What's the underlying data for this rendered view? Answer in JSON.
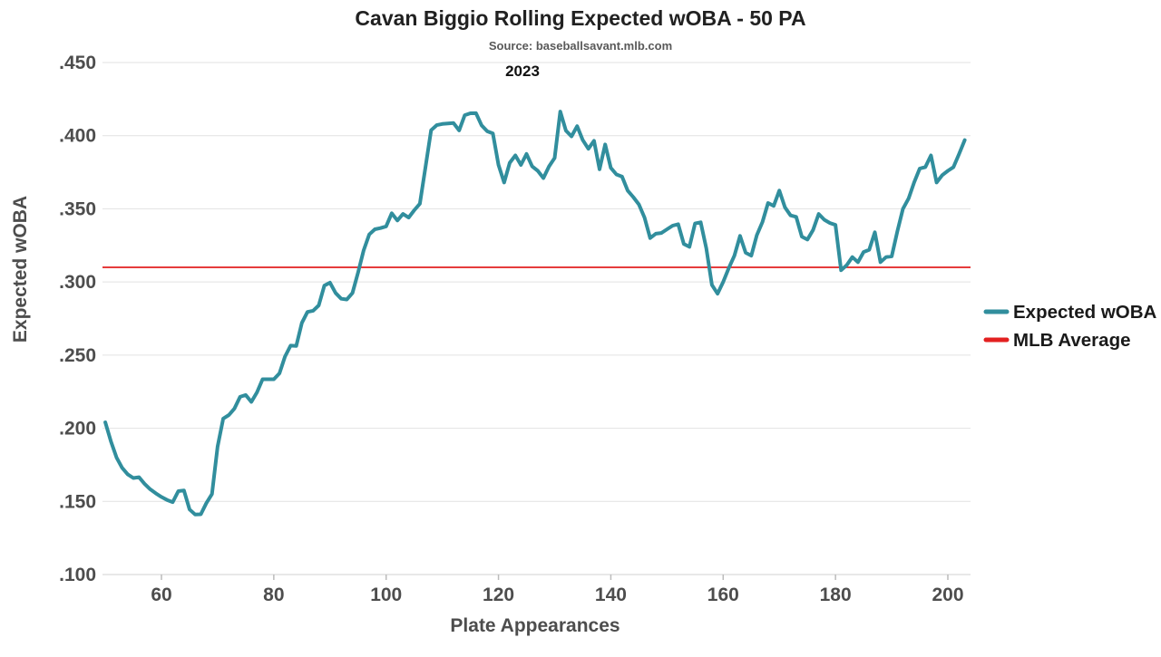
{
  "header": {
    "title": "Cavan Biggio Rolling Expected wOBA - 50 PA",
    "subtitle": "Source: baseballsavant.mlb.com",
    "facet_label": "2023"
  },
  "axes": {
    "x_label": "Plate Appearances",
    "y_label": "Expected wOBA"
  },
  "legend": {
    "items": [
      {
        "label": "Expected wOBA",
        "color": "#318e9d"
      },
      {
        "label": "MLB Average",
        "color": "#e32020"
      }
    ]
  },
  "colors": {
    "expected_woba_line": "#318e9d",
    "mlb_average_line": "#e32020",
    "gridline": "#e2e2e2",
    "baseline": "#d0d0d0",
    "tick_mark": "#bbbbbb",
    "axis_text": "#4d4d4d",
    "title_text": "#212121"
  },
  "chart_data": {
    "type": "line",
    "title": "Cavan Biggio Rolling Expected wOBA - 50 PA",
    "subtitle": "Source: baseballsavant.mlb.com",
    "facet_label": "2023",
    "xlabel": "Plate Appearances",
    "ylabel": "Expected wOBA",
    "xlim": [
      49.5,
      204.5
    ],
    "ylim": [
      0.1,
      0.45
    ],
    "grid": "horizontal-only",
    "legend_position": "right",
    "x_ticks": [
      60,
      80,
      100,
      120,
      140,
      160,
      180,
      200
    ],
    "y_ticks": [
      {
        "value": 0.45,
        "label": ".450"
      },
      {
        "value": 0.4,
        "label": ".400"
      },
      {
        "value": 0.35,
        "label": ".350"
      },
      {
        "value": 0.3,
        "label": ".300"
      },
      {
        "value": 0.25,
        "label": ".250"
      },
      {
        "value": 0.2,
        "label": ".200"
      },
      {
        "value": 0.15,
        "label": ".150"
      },
      {
        "value": 0.1,
        "label": ".100"
      }
    ],
    "mlb_average": 0.31,
    "series": [
      {
        "name": "Expected wOBA",
        "x_start": 50,
        "x_step": 1,
        "values": [
          0.204,
          0.191,
          0.18,
          0.173,
          0.1685,
          0.166,
          0.1665,
          0.162,
          0.1583,
          0.1555,
          0.153,
          0.151,
          0.1495,
          0.157,
          0.1575,
          0.1445,
          0.141,
          0.1412,
          0.1488,
          0.155,
          0.1875,
          0.2066,
          0.209,
          0.2135,
          0.2215,
          0.2227,
          0.218,
          0.2245,
          0.2335,
          0.2335,
          0.2335,
          0.2375,
          0.249,
          0.2565,
          0.2562,
          0.272,
          0.2795,
          0.2803,
          0.284,
          0.2975,
          0.2995,
          0.2925,
          0.2885,
          0.288,
          0.2925,
          0.3065,
          0.3215,
          0.3325,
          0.336,
          0.3368,
          0.338,
          0.347,
          0.342,
          0.3465,
          0.344,
          0.349,
          0.3535,
          0.3785,
          0.4037,
          0.4072,
          0.408,
          0.4083,
          0.4086,
          0.4036,
          0.414,
          0.4153,
          0.4154,
          0.407,
          0.403,
          0.4015,
          0.38,
          0.368,
          0.3815,
          0.3865,
          0.38,
          0.3875,
          0.379,
          0.376,
          0.371,
          0.379,
          0.3848,
          0.4165,
          0.4035,
          0.3995,
          0.4065,
          0.397,
          0.391,
          0.3965,
          0.377,
          0.394,
          0.378,
          0.3735,
          0.372,
          0.3625,
          0.358,
          0.353,
          0.344,
          0.33,
          0.333,
          0.3335,
          0.336,
          0.3385,
          0.3395,
          0.326,
          0.324,
          0.34,
          0.3408,
          0.323,
          0.298,
          0.292,
          0.3,
          0.3095,
          0.318,
          0.3315,
          0.32,
          0.318,
          0.332,
          0.341,
          0.354,
          0.352,
          0.3625,
          0.351,
          0.3455,
          0.3445,
          0.331,
          0.329,
          0.3355,
          0.3465,
          0.3425,
          0.3403,
          0.339,
          0.308,
          0.3115,
          0.317,
          0.3135,
          0.3205,
          0.322,
          0.334,
          0.3135,
          0.317,
          0.3175,
          0.3345,
          0.35,
          0.357,
          0.368,
          0.3775,
          0.3785,
          0.3865,
          0.368,
          0.373,
          0.376,
          0.3785,
          0.3875,
          0.397
        ]
      },
      {
        "name": "MLB Average",
        "constant_value": 0.31
      }
    ]
  }
}
